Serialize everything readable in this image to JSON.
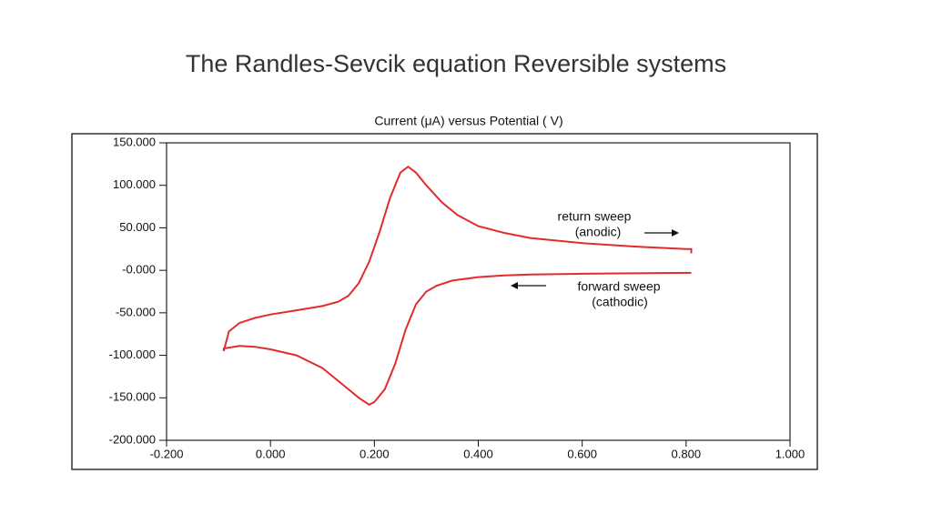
{
  "slide_title": "The Randles-Sevcik equation Reversible systems",
  "chart_data": {
    "type": "line",
    "title": "Current (μA) versus Potential ( V)",
    "x": [
      0.81,
      0.7,
      0.6,
      0.5,
      0.45,
      0.4,
      0.35,
      0.32,
      0.3,
      0.28,
      0.26,
      0.24,
      0.22,
      0.2,
      0.19,
      0.17,
      0.15,
      0.12,
      0.1,
      0.05,
      0.0,
      -0.03,
      -0.06,
      -0.09,
      -0.09,
      -0.08,
      -0.06,
      -0.03,
      0.0,
      0.05,
      0.1,
      0.13,
      0.15,
      0.17,
      0.19,
      0.21,
      0.23,
      0.25,
      0.265,
      0.28,
      0.3,
      0.33,
      0.36,
      0.4,
      0.45,
      0.5,
      0.6,
      0.7,
      0.8,
      0.81,
      0.81
    ],
    "values": [
      -3,
      -3.5,
      -4,
      -5,
      -6,
      -8,
      -12,
      -18,
      -25,
      -40,
      -70,
      -110,
      -140,
      -155,
      -158,
      -150,
      -140,
      -125,
      -115,
      -100,
      -93,
      -90,
      -89,
      -92,
      -95,
      -72,
      -62,
      -56,
      -52,
      -47,
      -42,
      -37,
      -30,
      -15,
      10,
      45,
      85,
      115,
      122,
      115,
      100,
      80,
      65,
      52,
      44,
      38,
      32,
      28,
      25,
      25,
      20
    ],
    "color": "#e32b2b",
    "xlim": [
      -0.2,
      1.0
    ],
    "xticks": [
      {
        "value": -0.2,
        "label": "-0.200"
      },
      {
        "value": 0,
        "label": "0.000"
      },
      {
        "value": 0.2,
        "label": "0.200"
      },
      {
        "value": 0.4,
        "label": "0.400"
      },
      {
        "value": 0.6,
        "label": "0.600"
      },
      {
        "value": 0.8,
        "label": "0.800"
      },
      {
        "value": 1.0,
        "label": "1.000"
      }
    ],
    "ylim": [
      -200,
      150
    ],
    "yticks": [
      {
        "value": 150,
        "label": "150.000"
      },
      {
        "value": 100,
        "label": "100.000"
      },
      {
        "value": 50,
        "label": "50.000"
      },
      {
        "value": 0,
        "label": "-0.000"
      },
      {
        "value": -50,
        "label": "-50.000"
      },
      {
        "value": -100,
        "label": "-100.000"
      },
      {
        "value": -150,
        "label": "-150.000"
      },
      {
        "value": -200,
        "label": "-200.000"
      }
    ],
    "annotations": [
      "return sweep",
      "(anodic)",
      "forward sweep",
      "(cathodic)"
    ]
  }
}
